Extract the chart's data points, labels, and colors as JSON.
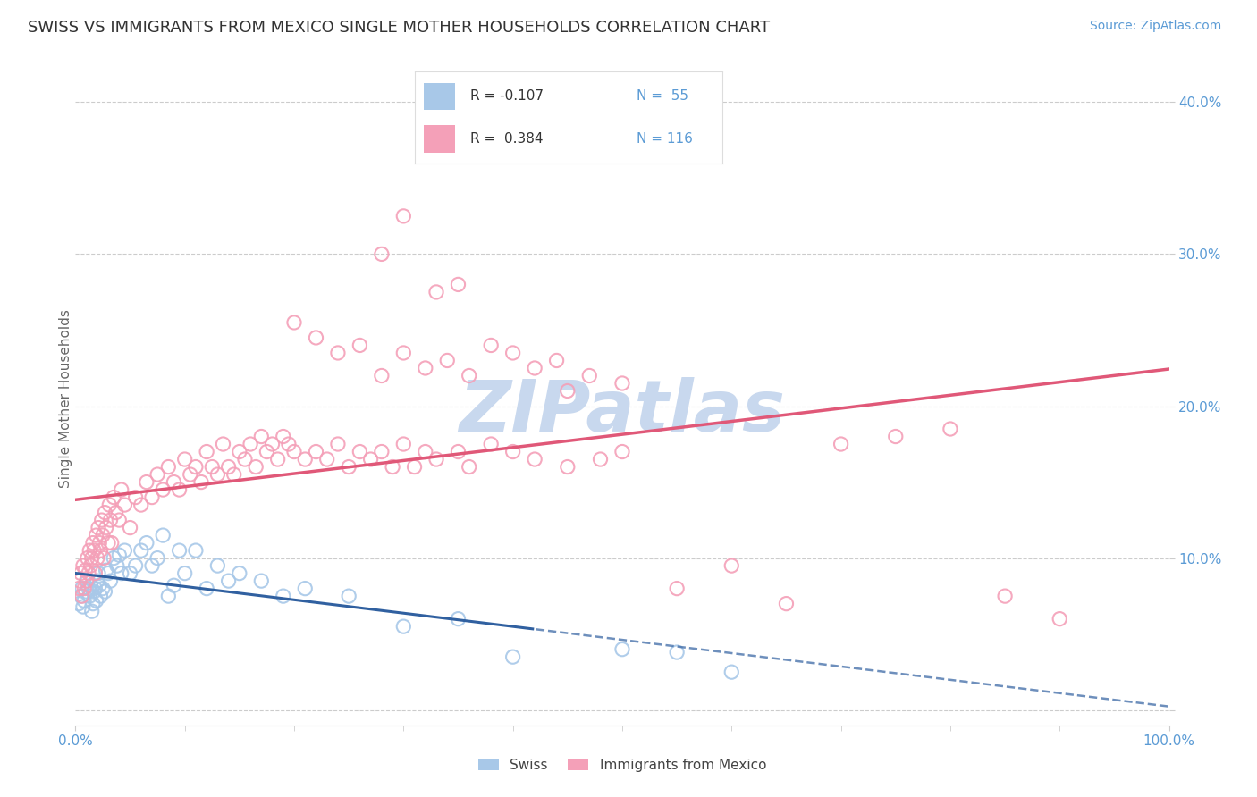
{
  "title": "SWISS VS IMMIGRANTS FROM MEXICO SINGLE MOTHER HOUSEHOLDS CORRELATION CHART",
  "source_text": "Source: ZipAtlas.com",
  "ylabel": "Single Mother Households",
  "xlim": [
    0,
    100
  ],
  "ylim": [
    -1,
    42
  ],
  "ytick_vals": [
    0,
    10,
    20,
    30,
    40
  ],
  "yticklabels": [
    "",
    "10.0%",
    "20.0%",
    "30.0%",
    "40.0%"
  ],
  "xtick_vals": [
    0,
    100
  ],
  "xticklabels": [
    "0.0%",
    "100.0%"
  ],
  "swiss_color": "#a8c8e8",
  "mexico_color": "#f4a0b8",
  "swiss_line_color": "#3060a0",
  "mexico_line_color": "#e05878",
  "watermark": "ZIPatlas",
  "watermark_color": "#c8d8ee",
  "background_color": "#ffffff",
  "tick_color": "#5b9bd5",
  "title_fontsize": 13,
  "source_fontsize": 10,
  "swiss_scatter": [
    [
      0.3,
      7.0
    ],
    [
      0.5,
      7.5
    ],
    [
      0.6,
      8.0
    ],
    [
      0.7,
      6.8
    ],
    [
      0.8,
      7.2
    ],
    [
      1.0,
      7.8
    ],
    [
      1.1,
      8.5
    ],
    [
      1.2,
      8.0
    ],
    [
      1.3,
      7.5
    ],
    [
      1.4,
      8.2
    ],
    [
      1.5,
      6.5
    ],
    [
      1.6,
      7.0
    ],
    [
      1.7,
      7.8
    ],
    [
      1.8,
      8.0
    ],
    [
      1.9,
      7.2
    ],
    [
      2.0,
      8.5
    ],
    [
      2.1,
      9.0
    ],
    [
      2.2,
      8.2
    ],
    [
      2.3,
      7.5
    ],
    [
      2.5,
      8.0
    ],
    [
      2.7,
      7.8
    ],
    [
      2.8,
      9.2
    ],
    [
      3.0,
      9.0
    ],
    [
      3.2,
      8.5
    ],
    [
      3.5,
      10.0
    ],
    [
      3.8,
      9.5
    ],
    [
      4.0,
      10.2
    ],
    [
      4.2,
      9.0
    ],
    [
      4.5,
      10.5
    ],
    [
      5.0,
      9.0
    ],
    [
      5.5,
      9.5
    ],
    [
      6.0,
      10.5
    ],
    [
      6.5,
      11.0
    ],
    [
      7.0,
      9.5
    ],
    [
      7.5,
      10.0
    ],
    [
      8.0,
      11.5
    ],
    [
      8.5,
      7.5
    ],
    [
      9.0,
      8.2
    ],
    [
      9.5,
      10.5
    ],
    [
      10.0,
      9.0
    ],
    [
      11.0,
      10.5
    ],
    [
      12.0,
      8.0
    ],
    [
      13.0,
      9.5
    ],
    [
      14.0,
      8.5
    ],
    [
      15.0,
      9.0
    ],
    [
      17.0,
      8.5
    ],
    [
      19.0,
      7.5
    ],
    [
      21.0,
      8.0
    ],
    [
      25.0,
      7.5
    ],
    [
      30.0,
      5.5
    ],
    [
      35.0,
      6.0
    ],
    [
      40.0,
      3.5
    ],
    [
      50.0,
      4.0
    ],
    [
      55.0,
      3.8
    ],
    [
      60.0,
      2.5
    ]
  ],
  "mexico_scatter": [
    [
      0.3,
      8.0
    ],
    [
      0.4,
      8.5
    ],
    [
      0.5,
      9.0
    ],
    [
      0.6,
      7.5
    ],
    [
      0.7,
      9.5
    ],
    [
      0.8,
      8.0
    ],
    [
      0.9,
      9.2
    ],
    [
      1.0,
      8.5
    ],
    [
      1.1,
      10.0
    ],
    [
      1.2,
      9.0
    ],
    [
      1.3,
      10.5
    ],
    [
      1.4,
      9.5
    ],
    [
      1.5,
      10.0
    ],
    [
      1.6,
      11.0
    ],
    [
      1.7,
      10.5
    ],
    [
      1.8,
      9.0
    ],
    [
      1.9,
      11.5
    ],
    [
      2.0,
      10.0
    ],
    [
      2.1,
      12.0
    ],
    [
      2.2,
      11.0
    ],
    [
      2.3,
      10.5
    ],
    [
      2.4,
      12.5
    ],
    [
      2.5,
      11.5
    ],
    [
      2.6,
      10.0
    ],
    [
      2.7,
      13.0
    ],
    [
      2.8,
      12.0
    ],
    [
      3.0,
      11.0
    ],
    [
      3.1,
      13.5
    ],
    [
      3.2,
      12.5
    ],
    [
      3.3,
      11.0
    ],
    [
      3.5,
      14.0
    ],
    [
      3.7,
      13.0
    ],
    [
      4.0,
      12.5
    ],
    [
      4.2,
      14.5
    ],
    [
      4.5,
      13.5
    ],
    [
      5.0,
      12.0
    ],
    [
      5.5,
      14.0
    ],
    [
      6.0,
      13.5
    ],
    [
      6.5,
      15.0
    ],
    [
      7.0,
      14.0
    ],
    [
      7.5,
      15.5
    ],
    [
      8.0,
      14.5
    ],
    [
      8.5,
      16.0
    ],
    [
      9.0,
      15.0
    ],
    [
      9.5,
      14.5
    ],
    [
      10.0,
      16.5
    ],
    [
      10.5,
      15.5
    ],
    [
      11.0,
      16.0
    ],
    [
      11.5,
      15.0
    ],
    [
      12.0,
      17.0
    ],
    [
      12.5,
      16.0
    ],
    [
      13.0,
      15.5
    ],
    [
      13.5,
      17.5
    ],
    [
      14.0,
      16.0
    ],
    [
      14.5,
      15.5
    ],
    [
      15.0,
      17.0
    ],
    [
      15.5,
      16.5
    ],
    [
      16.0,
      17.5
    ],
    [
      16.5,
      16.0
    ],
    [
      17.0,
      18.0
    ],
    [
      17.5,
      17.0
    ],
    [
      18.0,
      17.5
    ],
    [
      18.5,
      16.5
    ],
    [
      19.0,
      18.0
    ],
    [
      19.5,
      17.5
    ],
    [
      20.0,
      17.0
    ],
    [
      21.0,
      16.5
    ],
    [
      22.0,
      17.0
    ],
    [
      23.0,
      16.5
    ],
    [
      24.0,
      17.5
    ],
    [
      25.0,
      16.0
    ],
    [
      26.0,
      17.0
    ],
    [
      27.0,
      16.5
    ],
    [
      28.0,
      17.0
    ],
    [
      29.0,
      16.0
    ],
    [
      30.0,
      17.5
    ],
    [
      31.0,
      16.0
    ],
    [
      32.0,
      17.0
    ],
    [
      33.0,
      16.5
    ],
    [
      35.0,
      17.0
    ],
    [
      36.0,
      16.0
    ],
    [
      38.0,
      17.5
    ],
    [
      40.0,
      17.0
    ],
    [
      42.0,
      16.5
    ],
    [
      45.0,
      16.0
    ],
    [
      48.0,
      16.5
    ],
    [
      50.0,
      17.0
    ],
    [
      55.0,
      8.0
    ],
    [
      60.0,
      9.5
    ],
    [
      65.0,
      7.0
    ],
    [
      70.0,
      17.5
    ],
    [
      75.0,
      18.0
    ],
    [
      80.0,
      18.5
    ],
    [
      85.0,
      7.5
    ],
    [
      90.0,
      6.0
    ],
    [
      28.0,
      22.0
    ],
    [
      30.0,
      23.5
    ],
    [
      32.0,
      22.5
    ],
    [
      34.0,
      23.0
    ],
    [
      36.0,
      22.0
    ],
    [
      22.0,
      24.5
    ],
    [
      24.0,
      23.5
    ],
    [
      26.0,
      24.0
    ],
    [
      20.0,
      25.5
    ],
    [
      38.0,
      24.0
    ],
    [
      40.0,
      23.5
    ],
    [
      42.0,
      22.5
    ],
    [
      44.0,
      23.0
    ],
    [
      33.0,
      27.5
    ],
    [
      35.0,
      28.0
    ],
    [
      45.0,
      21.0
    ],
    [
      47.0,
      22.0
    ],
    [
      50.0,
      21.5
    ],
    [
      28.0,
      30.0
    ],
    [
      30.0,
      32.5
    ]
  ]
}
